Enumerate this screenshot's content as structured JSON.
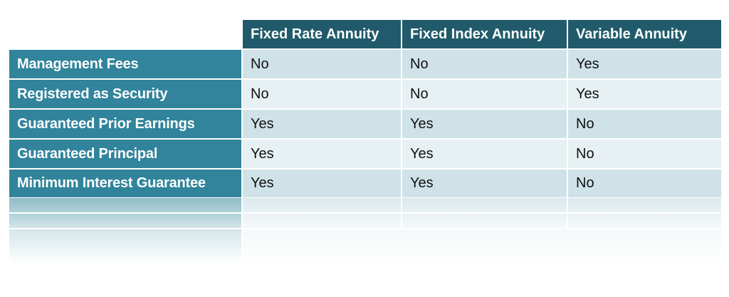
{
  "table": {
    "columns": [
      "Fixed Rate Annuity",
      "Fixed Index Annuity",
      "Variable Annuity"
    ],
    "rows": [
      {
        "label": "Management Fees",
        "values": [
          "No",
          "No",
          "Yes"
        ]
      },
      {
        "label": "Registered as Security",
        "values": [
          "No",
          "No",
          "Yes"
        ]
      },
      {
        "label": "Guaranteed Prior Earnings",
        "values": [
          "Yes",
          "Yes",
          "No"
        ]
      },
      {
        "label": "Guaranteed Principal",
        "values": [
          "Yes",
          "Yes",
          "No"
        ]
      },
      {
        "label": "Minimum Interest Guarantee",
        "values": [
          "Yes",
          "Yes",
          "No"
        ]
      }
    ]
  },
  "colors": {
    "header_bg": "#215b6b",
    "row_header_bg": "#31849b",
    "row_odd_bg": "#cfe2e8",
    "row_even_bg": "#e7f0f3",
    "header_text": "#ffffff",
    "cell_text": "#111111"
  }
}
